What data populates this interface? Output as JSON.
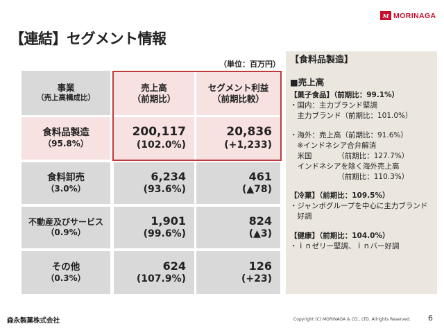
{
  "logo": {
    "mark": "M",
    "text": "MORINAGA"
  },
  "title": "【連結】セグメント情報",
  "unit": "（単位：百万円）",
  "table": {
    "headers": {
      "business": {
        "main": "事業",
        "sub": "（売上高構成比）"
      },
      "sales": {
        "main": "売上高",
        "sub": "（前期比）"
      },
      "profit": {
        "main": "セグメント利益",
        "sub": "（前期比較）"
      }
    },
    "rows": [
      {
        "name": "食料品製造",
        "share": "（95.8%）",
        "sales": "200,117",
        "sales_yoy": "(102.0%)",
        "profit": "20,836",
        "profit_diff": "(+1,233)"
      },
      {
        "name": "食料卸売",
        "share": "（3.0%）",
        "sales": "6,234",
        "sales_yoy": "(93.6%)",
        "profit": "461",
        "profit_diff": "(▲78)"
      },
      {
        "name": "不動産及びサービス",
        "share": "（0.9%）",
        "sales": "1,901",
        "sales_yoy": "(99.6%)",
        "profit": "824",
        "profit_diff": "(▲3)"
      },
      {
        "name": "その他",
        "share": "（0.3%）",
        "sales": "624",
        "sales_yoy": "(107.9%)",
        "profit": "126",
        "profit_diff": "(+23)"
      }
    ]
  },
  "side": {
    "heading": "【食料品製造】",
    "subheading": "■売上高",
    "lines_a": [
      "【菓子食品】（前期比：99.1%）",
      "・国内：主力ブランド堅調",
      "　主力ブランド（前期比：101.0%）"
    ],
    "lines_b": [
      "・海外：売上高（前期比：91.6%）",
      "　※インドネシア合弁解消",
      "　米国　　　　（前期比：127.7%）",
      "　インドネシアを除く海外売上高",
      "　　　　　　　（前期比：110.3%）"
    ],
    "lines_c": [
      "【冷菓】（前期比：109.5%）",
      "・ジャンボグループを中心に主力ブランド",
      "　好調"
    ],
    "lines_d": [
      "【健康】（前期比：104.0%）",
      "・ｉｎゼリー堅調、ｉｎバー好調"
    ]
  },
  "footer": {
    "company": "森永製菓株式会社",
    "copyright": "Copyright (C) MORINAGA & CO., LTD. Allrights Reserved.",
    "page": "6"
  }
}
